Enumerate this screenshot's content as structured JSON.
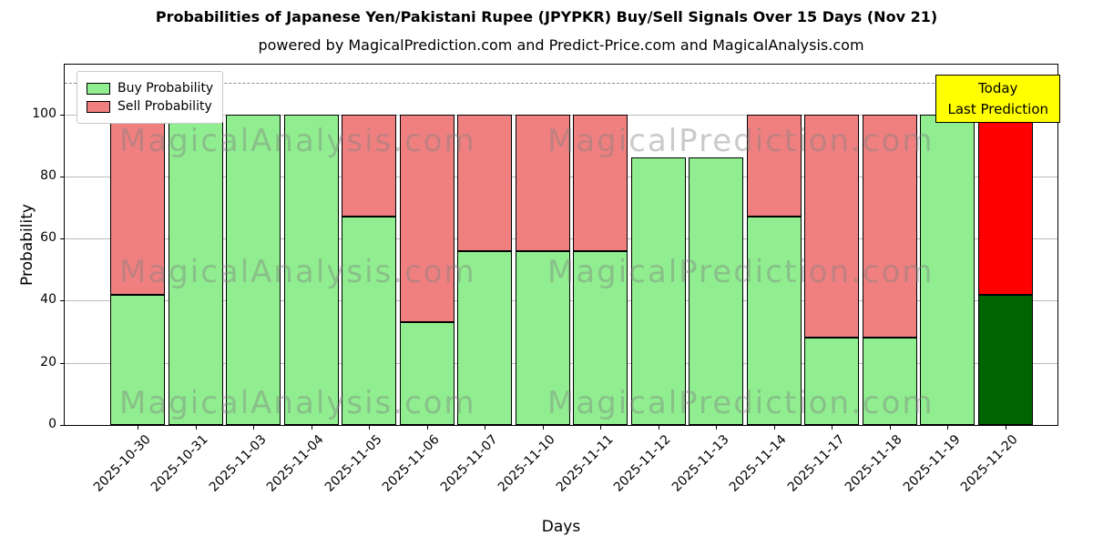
{
  "figure": {
    "title": "Probabilities of Japanese Yen/Pakistani Rupee (JPYPKR) Buy/Sell Signals Over 15 Days (Nov 21)",
    "subtitle": "powered by MagicalPrediction.com and Predict-Price.com and MagicalAnalysis.com"
  },
  "axes": {
    "xlabel": "Days",
    "ylabel": "Probability",
    "yticks": [
      0,
      20,
      40,
      60,
      80,
      100
    ]
  },
  "legend": {
    "items": [
      {
        "label": "Buy Probability",
        "color": "#90ee90"
      },
      {
        "label": "Sell Probability",
        "color": "#f08080"
      }
    ]
  },
  "annotation_box": {
    "lines": [
      "Today",
      "Last Prediction"
    ],
    "bg_color": "#ffff00"
  },
  "watermarks": {
    "left_text": "MagicalAnalysis.com",
    "right_text": "MagicalPrediction.com"
  },
  "colors": {
    "buy": "#90ee90",
    "sell": "#f08080",
    "today_buy": "#006400",
    "today_sell": "#ff0000",
    "bar_edge": "#000000",
    "grid": "#b9b9b9",
    "dashed_line": "#8a8a8a"
  },
  "chart_data": {
    "type": "bar",
    "stacked": true,
    "title": "Probabilities of Japanese Yen/Pakistani Rupee (JPYPKR) Buy/Sell Signals Over 15 Days (Nov 21)",
    "xlabel": "Days",
    "ylabel": "Probability",
    "ylim": [
      0,
      116
    ],
    "yticks": [
      0,
      20,
      40,
      60,
      80,
      100
    ],
    "dashed_hline_y": 110,
    "grid": true,
    "legend_position": "upper-left",
    "categories": [
      "2025-10-30",
      "2025-10-31",
      "2025-11-03",
      "2025-11-04",
      "2025-11-05",
      "2025-11-06",
      "2025-11-07",
      "2025-11-10",
      "2025-11-11",
      "2025-11-12",
      "2025-11-13",
      "2025-11-14",
      "2025-11-17",
      "2025-11-18",
      "2025-11-19",
      "2025-11-20"
    ],
    "series": [
      {
        "name": "Buy Probability",
        "values": [
          42,
          100,
          100,
          100,
          67,
          33,
          56,
          56,
          56,
          86,
          86,
          67,
          28,
          28,
          100,
          42
        ]
      },
      {
        "name": "Sell Probability",
        "values": [
          58,
          0,
          0,
          0,
          33,
          67,
          44,
          44,
          44,
          0,
          0,
          33,
          72,
          72,
          0,
          58
        ]
      }
    ],
    "today_bar": {
      "category": "2025-11-20",
      "index": 15,
      "buy": 42,
      "sell": 58
    }
  }
}
